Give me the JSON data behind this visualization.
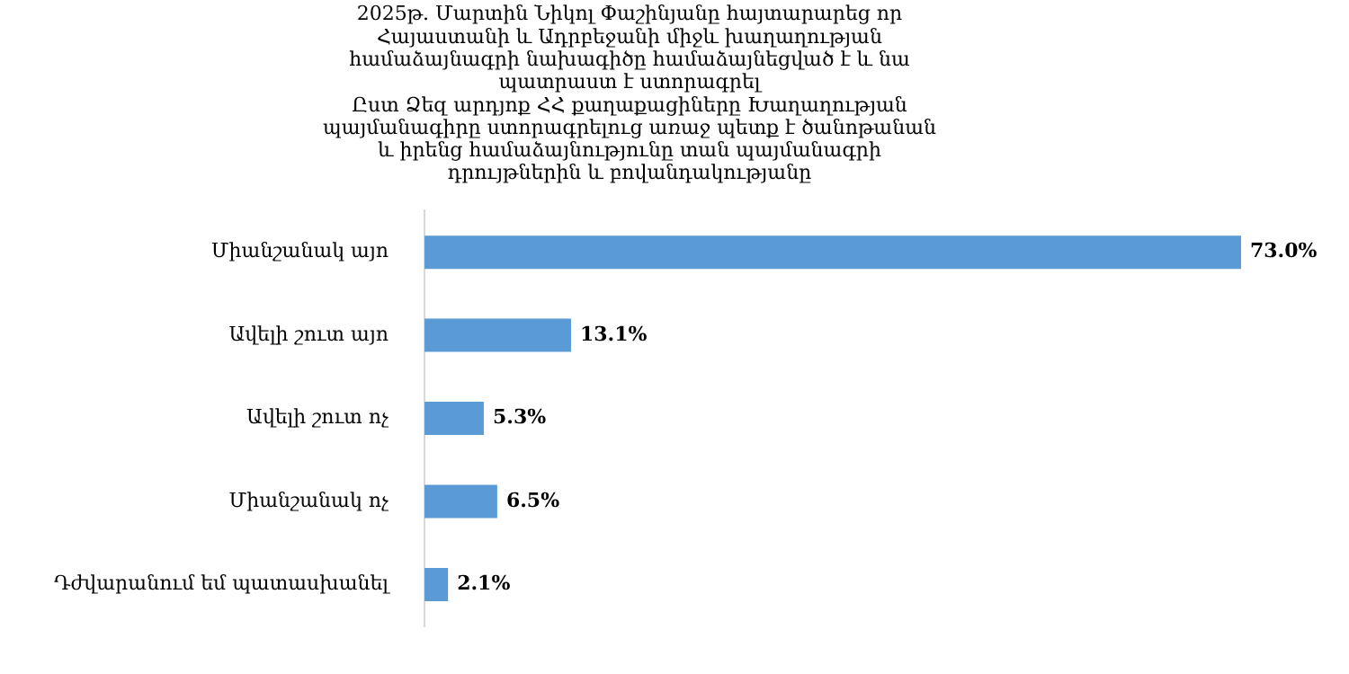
{
  "chart_data": {
    "type": "bar",
    "orientation": "horizontal",
    "title": "2025թ. Մարտին Նիկոլ Փաշինյանը հայտարարեց որ\nՀայաստանի և Ադրբեջանի միջև խաղաղության\nհամաձայնագրի նախագիծը համաձայնեցված է և նա\nպատրաստ է ստորագրել\nԸստ Ձեզ արդյոք ՀՀ քաղաքացիները Խաղաղության\nպայմանագիրը ստորագրելուց առաջ պետք է ծանոթանան\nև իրենց համաձայնությունը տան պայմանագրի\nդրույթներին և բովանդակությանը",
    "categories": [
      "Միանշանակ այո",
      "Ավելի շուտ այո",
      "Ավելի շուտ ոչ",
      "Միանշանակ ոչ",
      "Դժվարանում եմ պատասխանել"
    ],
    "values": [
      73.0,
      13.1,
      5.3,
      6.5,
      2.1
    ],
    "value_labels": [
      "73.0%",
      "13.1%",
      "5.3%",
      "6.5%",
      "2.1%"
    ],
    "color": "#5b9bd5",
    "grid": false,
    "legend": false
  }
}
